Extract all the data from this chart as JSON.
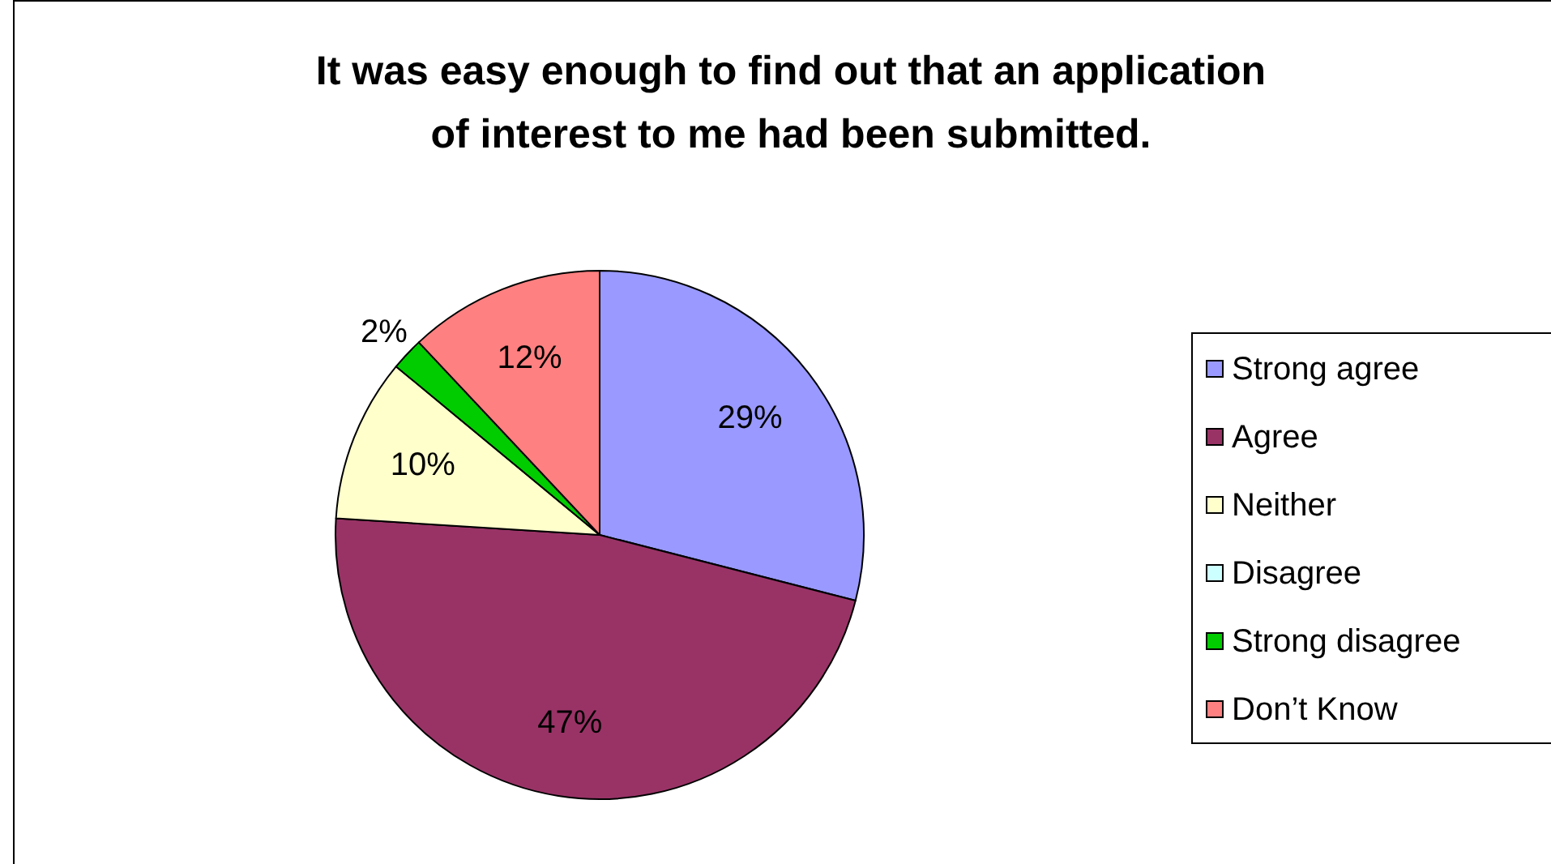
{
  "chart_data": {
    "type": "pie",
    "title": "It was easy enough to find out that an application\nof interest to me had been submitted.",
    "categories": [
      "Strong agree",
      "Agree",
      "Neither",
      "Disagree",
      "Strong disagree",
      "Don’t Know"
    ],
    "values": [
      29,
      47,
      10,
      0,
      2,
      12
    ],
    "colors": [
      "#9999ff",
      "#993366",
      "#ffffcc",
      "#ccffff",
      "#00cc00",
      "#ff8080"
    ],
    "value_labels": [
      "29%",
      "47%",
      "10%",
      null,
      "2%",
      "12%"
    ],
    "legend": "right"
  }
}
